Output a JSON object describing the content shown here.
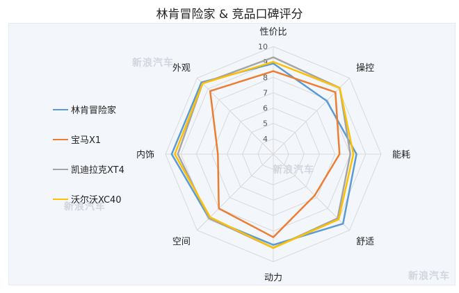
{
  "chart_data": {
    "type": "radar",
    "title": "林肯冒险家 & 竞品口碑评分",
    "axes": [
      "性价比",
      "操控",
      "能耗",
      "舒适",
      "动力",
      "空间",
      "内饰",
      "外观"
    ],
    "rlim": [
      3,
      10
    ],
    "ticks": [
      "4",
      "5",
      "6",
      "7",
      "8",
      "9",
      "10"
    ],
    "grid": true,
    "legend_position": "left",
    "series": [
      {
        "name": "林肯冒险家",
        "color": "#5b9bd5",
        "values": [
          8.9,
          7.9,
          8.4,
          9.4,
          8.9,
          8.9,
          9.6,
          9.6
        ]
      },
      {
        "name": "宝马X1",
        "color": "#ed7d31",
        "values": [
          8.4,
          8.7,
          7.3,
          6.8,
          8.4,
          8.0,
          6.6,
          8.8
        ]
      },
      {
        "name": "凯迪拉克XT4",
        "color": "#a5a5a5",
        "values": [
          9.3,
          9.1,
          8.0,
          8.9,
          9.1,
          8.9,
          9.2,
          9.5
        ]
      },
      {
        "name": "沃尔沃XC40",
        "color": "#ffc000",
        "values": [
          9.0,
          9.1,
          8.2,
          9.0,
          9.1,
          8.8,
          9.4,
          9.5
        ]
      }
    ]
  },
  "watermark": "新浪汽车"
}
